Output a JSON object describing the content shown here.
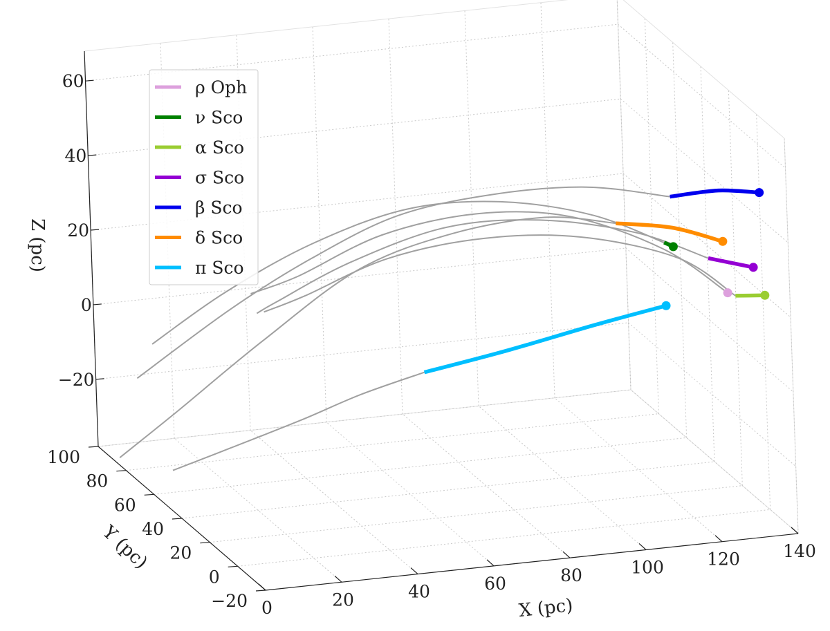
{
  "chart_data": {
    "type": "line",
    "title": "",
    "xlabel": "X (pc)",
    "ylabel": "Y (pc)",
    "zlabel": "Z (pc)",
    "xticks": [
      "0",
      "20",
      "40",
      "60",
      "80",
      "100",
      "120",
      "140"
    ],
    "yticks": [
      "−20",
      "0",
      "20",
      "40",
      "60",
      "80",
      "100"
    ],
    "zticks": [
      "−20",
      "0",
      "20",
      "40",
      "60"
    ],
    "xlim": [
      0,
      140
    ],
    "ylim": [
      -20,
      100
    ],
    "zlim": [
      -38,
      68
    ],
    "grid": true,
    "legend_position": "top-left",
    "series": [
      {
        "name": "ρ Oph",
        "color": "#dda0dd",
        "current": [
          128,
          -8,
          24
        ],
        "highlight": [
          [
            128,
            -8,
            24
          ]
        ],
        "track": [
          [
            128,
            -8,
            24
          ],
          [
            115,
            2,
            34
          ],
          [
            95,
            14,
            41
          ],
          [
            75,
            26,
            40
          ],
          [
            55,
            40,
            32
          ],
          [
            38,
            55,
            18
          ],
          [
            30,
            68,
            10
          ]
        ]
      },
      {
        "name": "ν Sco",
        "color": "#008000",
        "current": [
          117,
          0,
          35
        ],
        "highlight": [
          [
            117,
            0,
            35
          ],
          [
            115,
            1,
            36
          ]
        ],
        "track": [
          [
            117,
            0,
            35
          ],
          [
            100,
            10,
            42
          ],
          [
            80,
            22,
            44
          ],
          [
            60,
            35,
            40
          ],
          [
            40,
            50,
            28
          ],
          [
            22,
            65,
            12
          ],
          [
            8,
            80,
            -5
          ]
        ]
      },
      {
        "name": "α Sco",
        "color": "#9acd32",
        "current": [
          137,
          -10,
          23
        ],
        "highlight": [
          [
            137,
            -10,
            23
          ],
          [
            130,
            -8,
            23
          ]
        ],
        "track": [
          [
            130,
            -8,
            23
          ],
          [
            120,
            5,
            30
          ],
          [
            100,
            20,
            33
          ],
          [
            80,
            35,
            30
          ],
          [
            60,
            50,
            22
          ],
          [
            42,
            62,
            10
          ],
          [
            34,
            70,
            4
          ]
        ]
      },
      {
        "name": "σ Sco",
        "color": "#9400d3",
        "current": [
          136,
          -5,
          29
        ],
        "highlight": [
          [
            136,
            -5,
            29
          ],
          [
            125,
            -3,
            32
          ]
        ],
        "track": [
          [
            125,
            -3,
            32
          ],
          [
            110,
            8,
            37
          ],
          [
            90,
            22,
            38
          ],
          [
            70,
            35,
            34
          ],
          [
            50,
            50,
            22
          ],
          [
            34,
            60,
            10
          ],
          [
            30,
            64,
            6
          ]
        ]
      },
      {
        "name": "β Sco",
        "color": "#0000ee",
        "current": [
          140,
          0,
          47
        ],
        "highlight": [
          [
            140,
            0,
            47
          ],
          [
            130,
            2,
            48
          ],
          [
            118,
            4,
            47
          ]
        ],
        "track": [
          [
            118,
            4,
            47
          ],
          [
            100,
            15,
            48
          ],
          [
            80,
            28,
            44
          ],
          [
            60,
            42,
            36
          ],
          [
            42,
            56,
            22
          ],
          [
            26,
            72,
            5
          ],
          [
            8,
            92,
            -18
          ]
        ]
      },
      {
        "name": "δ Sco",
        "color": "#ff8c00",
        "current": [
          130,
          0,
          35
        ],
        "highlight": [
          [
            130,
            0,
            35
          ],
          [
            118,
            3,
            39
          ],
          [
            105,
            8,
            40
          ]
        ],
        "track": [
          [
            105,
            8,
            40
          ],
          [
            90,
            18,
            40
          ],
          [
            70,
            30,
            34
          ],
          [
            50,
            44,
            22
          ],
          [
            30,
            60,
            0
          ],
          [
            12,
            75,
            -22
          ],
          [
            2,
            90,
            -38
          ]
        ]
      },
      {
        "name": "π Sco",
        "color": "#00bfff",
        "current": [
          116,
          4,
          18
        ],
        "highlight": [
          [
            116,
            4,
            18
          ],
          [
            100,
            12,
            12
          ],
          [
            80,
            22,
            4
          ],
          [
            62,
            32,
            -3
          ]
        ],
        "track": [
          [
            62,
            32,
            -3
          ],
          [
            48,
            40,
            -10
          ],
          [
            35,
            48,
            -18
          ],
          [
            20,
            58,
            -27
          ],
          [
            8,
            68,
            -35
          ]
        ]
      }
    ]
  }
}
